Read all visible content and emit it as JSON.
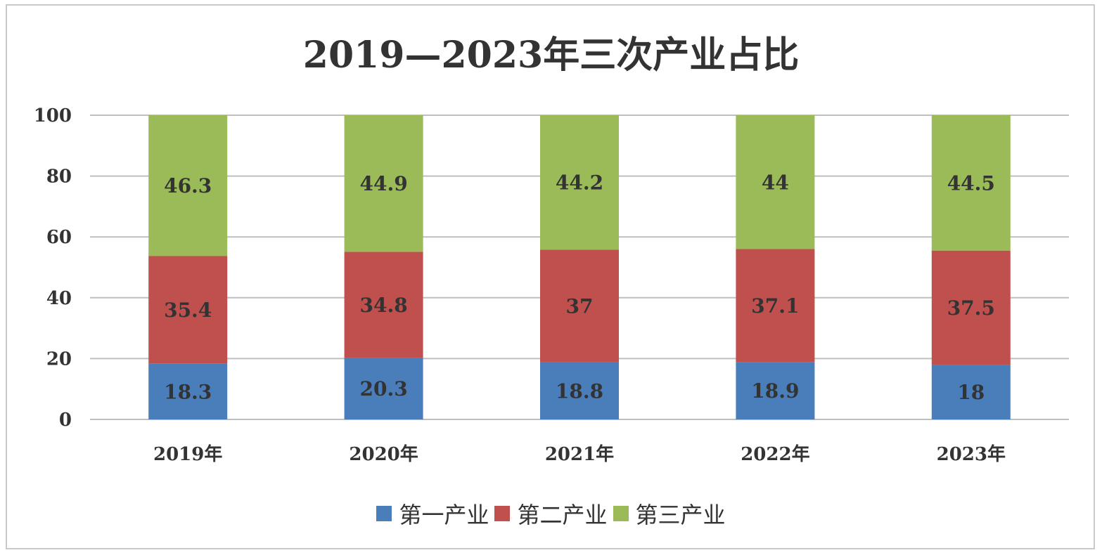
{
  "chart_data": {
    "type": "bar",
    "stacked": true,
    "title": "2019—2023年三次产业占比",
    "categories": [
      "2019年",
      "2020年",
      "2021年",
      "2022年",
      "2023年"
    ],
    "series": [
      {
        "name": "第一产业",
        "color": "#4a7ebb",
        "values": [
          18.3,
          20.3,
          18.8,
          18.9,
          18
        ],
        "labels": [
          "18.3",
          "20.3",
          "18.8",
          "18.9",
          "18"
        ]
      },
      {
        "name": "第二产业",
        "color": "#c0504d",
        "values": [
          35.4,
          34.8,
          37,
          37.1,
          37.5
        ],
        "labels": [
          "35.4",
          "34.8",
          "37",
          "37.1",
          "37.5"
        ]
      },
      {
        "name": "第三产业",
        "color": "#9bbb59",
        "values": [
          46.3,
          44.9,
          44.2,
          44,
          44.5
        ],
        "labels": [
          "46.3",
          "44.9",
          "44.2",
          "44",
          "44.5"
        ]
      }
    ],
    "ylim": [
      0,
      100
    ],
    "yticks": [
      "0",
      "20",
      "40",
      "60",
      "80",
      "100"
    ],
    "grid": true,
    "legend_position": "bottom"
  }
}
